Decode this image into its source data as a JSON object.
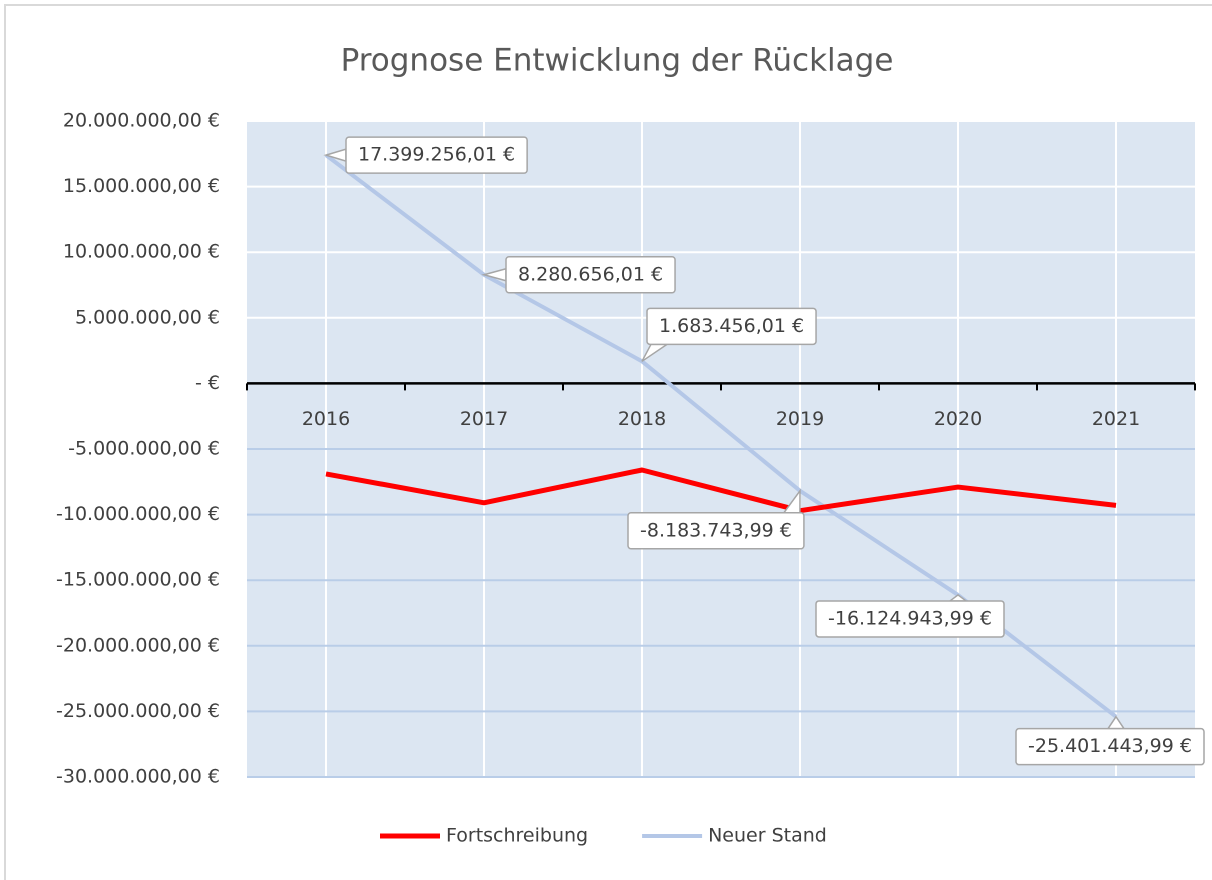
{
  "chart_data": {
    "type": "line",
    "title": "Prognose Entwicklung der Rücklage",
    "categories": [
      "2016",
      "2017",
      "2018",
      "2019",
      "2020",
      "2021"
    ],
    "series": [
      {
        "name": "Fortschreibung",
        "color": "#ff0000",
        "values": [
          -6900000,
          -9100000,
          -6600000,
          -9700000,
          -7900000,
          -9300000
        ]
      },
      {
        "name": "Neuer Stand",
        "color": "#b4c7e7",
        "values": [
          17399256.01,
          8280656.01,
          1683456.01,
          -8183743.99,
          -16124943.99,
          -25401443.99
        ],
        "value_labels": [
          "17.399.256,01 €",
          "8.280.656,01 €",
          "1.683.456,01 €",
          "-8.183.743,99 €",
          "-16.124.943,99 €",
          "-25.401.443,99 €"
        ]
      }
    ],
    "ylim": [
      -30000000,
      20000000
    ],
    "yticks": [
      {
        "value": -30000000,
        "label": "-30.000.000,00 €"
      },
      {
        "value": -25000000,
        "label": "-25.000.000,00 €"
      },
      {
        "value": -20000000,
        "label": "-20.000.000,00 €"
      },
      {
        "value": -15000000,
        "label": "-15.000.000,00 €"
      },
      {
        "value": -10000000,
        "label": "-10.000.000,00 €"
      },
      {
        "value": -5000000,
        "label": "-5.000.000,00 €"
      },
      {
        "value": 0,
        "label": "-   €"
      },
      {
        "value": 5000000,
        "label": "5.000.000,00 €"
      },
      {
        "value": 10000000,
        "label": "10.000.000,00 €"
      },
      {
        "value": 15000000,
        "label": "15.000.000,00 €"
      },
      {
        "value": 20000000,
        "label": "20.000.000,00 €"
      }
    ],
    "grid": true,
    "legend": "bottom"
  }
}
